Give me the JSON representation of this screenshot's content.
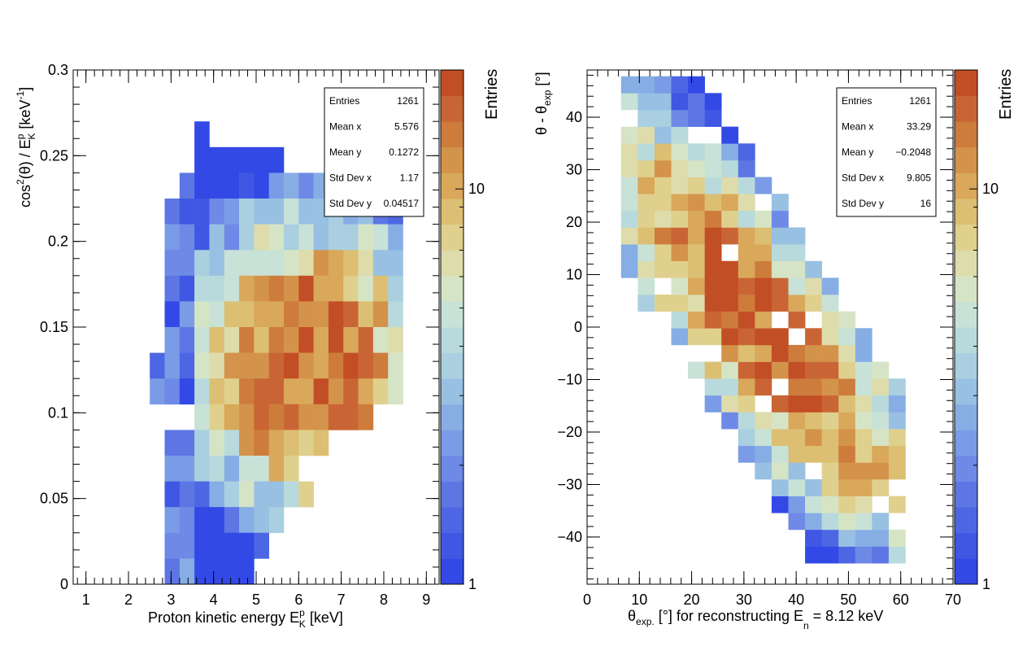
{
  "chart_data": [
    {
      "type": "heatmap",
      "id": "left",
      "xlabel": "Proton kinetic energy E",
      "xlabel_sup": "p",
      "xlabel_sub": "K",
      "xlabel_unit": " [keV]",
      "ylabel": "cos",
      "ylabel_sup1": "2",
      "ylabel_mid": "(θ) / E",
      "ylabel_sup2": "p",
      "ylabel_sub": "K",
      "ylabel_unit": "  [keV",
      "ylabel_unit_sup": "-1",
      "ylabel_close": "]",
      "xlim": [
        0.7,
        9.3
      ],
      "ylim": [
        0,
        0.3
      ],
      "x_ticks": [
        1,
        2,
        3,
        4,
        5,
        6,
        7,
        8,
        9
      ],
      "x_tick_labels": [
        "1",
        "2",
        "3",
        "4",
        "5",
        "6",
        "7",
        "8",
        "9"
      ],
      "y_ticks": [
        0,
        0.05,
        0.1,
        0.15,
        0.2,
        0.25,
        0.3
      ],
      "y_tick_labels": [
        "0",
        "0.05",
        "0.1",
        "0.15",
        "0.2",
        "0.25",
        "0.3"
      ],
      "bins": {
        "x_lo": 2.5,
        "x_width": 0.35,
        "x_count": 17,
        "y_lo": 0.02,
        "y_width": 0.02,
        "y_count": 14
      },
      "palette": {
        "title": "Entries",
        "min": 1,
        "max": 20,
        "scale": "log",
        "tick_values": [
          1,
          10
        ],
        "tick_labels": [
          "1",
          "10"
        ]
      },
      "stats": {
        "rows": [
          {
            "label": "Entries",
            "value": "1261"
          },
          {
            "label": "Mean x",
            "value": "5.576"
          },
          {
            "label": "Mean y",
            "value": "0.1272"
          },
          {
            "label": "Std Dev x",
            "value": "1.17"
          },
          {
            "label": "Std Dev y",
            "value": "0.04517"
          }
        ]
      },
      "cells": [
        [
          3,
          2
        ],
        [
          3,
          3
        ],
        [
          4,
          3
        ],
        [
          5,
          3
        ],
        [
          6,
          3
        ],
        [
          7,
          3
        ],
        [
          8,
          3
        ],
        [
          2,
          4
        ],
        [
          3,
          4
        ],
        [
          4,
          4
        ],
        [
          5,
          4
        ],
        [
          6,
          4
        ],
        [
          7,
          4
        ],
        [
          8,
          4
        ],
        [
          9,
          4
        ],
        [
          10,
          4
        ],
        [
          11,
          4
        ],
        [
          12,
          4
        ],
        [
          13,
          4
        ],
        [
          14,
          4
        ],
        [
          1,
          5
        ],
        [
          2,
          5
        ],
        [
          3,
          5
        ],
        [
          4,
          5
        ],
        [
          5,
          5
        ],
        [
          6,
          5
        ],
        [
          7,
          5
        ],
        [
          8,
          5
        ],
        [
          9,
          5
        ],
        [
          10,
          5
        ],
        [
          11,
          5
        ],
        [
          12,
          5
        ],
        [
          13,
          5
        ],
        [
          14,
          5
        ],
        [
          15,
          5
        ],
        [
          16,
          5
        ],
        [
          1,
          6
        ],
        [
          2,
          6
        ],
        [
          3,
          6
        ],
        [
          4,
          6
        ],
        [
          5,
          6
        ],
        [
          6,
          6
        ],
        [
          7,
          6
        ],
        [
          8,
          6
        ],
        [
          9,
          6
        ],
        [
          10,
          6
        ],
        [
          11,
          6
        ],
        [
          12,
          6
        ],
        [
          13,
          6
        ],
        [
          14,
          6
        ],
        [
          15,
          6
        ],
        [
          16,
          6
        ],
        [
          1,
          7
        ],
        [
          2,
          7
        ],
        [
          3,
          7
        ],
        [
          4,
          7
        ],
        [
          5,
          7
        ],
        [
          6,
          7
        ],
        [
          7,
          7
        ],
        [
          8,
          7
        ],
        [
          9,
          7
        ],
        [
          10,
          7
        ],
        [
          11,
          7
        ],
        [
          12,
          7
        ],
        [
          13,
          7
        ],
        [
          14,
          7
        ],
        [
          15,
          7
        ],
        [
          16,
          7
        ],
        [
          1,
          8
        ],
        [
          2,
          8
        ],
        [
          3,
          8
        ],
        [
          4,
          8
        ],
        [
          5,
          8
        ],
        [
          6,
          8
        ],
        [
          7,
          8
        ],
        [
          8,
          8
        ],
        [
          9,
          8
        ],
        [
          10,
          8
        ],
        [
          11,
          8
        ],
        [
          12,
          8
        ],
        [
          13,
          8
        ],
        [
          14,
          8
        ],
        [
          15,
          8
        ],
        [
          16,
          8
        ],
        [
          1,
          9
        ],
        [
          2,
          9
        ],
        [
          3,
          9
        ],
        [
          4,
          9
        ],
        [
          5,
          9
        ],
        [
          6,
          9
        ],
        [
          7,
          9
        ],
        [
          8,
          9
        ],
        [
          9,
          9
        ],
        [
          10,
          9
        ],
        [
          11,
          9
        ],
        [
          12,
          9
        ],
        [
          13,
          9
        ],
        [
          14,
          9
        ],
        [
          15,
          9
        ],
        [
          16,
          9
        ],
        [
          1,
          10
        ],
        [
          2,
          10
        ],
        [
          3,
          10
        ],
        [
          4,
          10
        ],
        [
          5,
          10
        ],
        [
          6,
          10
        ],
        [
          7,
          10
        ],
        [
          8,
          10
        ],
        [
          9,
          10
        ],
        [
          10,
          10
        ],
        [
          11,
          10
        ],
        [
          12,
          10
        ],
        [
          13,
          10
        ],
        [
          14,
          10
        ],
        [
          15,
          10
        ],
        [
          16,
          10
        ],
        [
          0,
          11
        ],
        [
          1,
          11
        ],
        [
          2,
          11
        ],
        [
          3,
          11
        ],
        [
          4,
          11
        ],
        [
          5,
          11
        ],
        [
          6,
          11
        ],
        [
          7,
          11
        ],
        [
          8,
          11
        ],
        [
          9,
          11
        ],
        [
          10,
          11
        ],
        [
          11,
          11
        ],
        [
          12,
          11
        ],
        [
          13,
          11
        ],
        [
          14,
          11
        ],
        [
          15,
          11
        ],
        [
          16,
          11
        ],
        [
          0,
          12
        ],
        [
          1,
          12
        ],
        [
          2,
          12
        ],
        [
          3,
          12
        ],
        [
          4,
          12
        ],
        [
          5,
          12
        ],
        [
          6,
          12
        ],
        [
          7,
          12
        ],
        [
          8,
          12
        ],
        [
          9,
          12
        ],
        [
          10,
          12
        ],
        [
          11,
          12
        ],
        [
          12,
          12
        ],
        [
          13,
          12
        ],
        [
          14,
          12
        ],
        [
          15,
          12
        ],
        [
          16,
          12
        ],
        [
          3,
          13
        ],
        [
          4,
          13
        ],
        [
          5,
          13
        ],
        [
          6,
          13
        ],
        [
          7,
          13
        ],
        [
          8,
          13
        ],
        [
          9,
          13
        ],
        [
          10,
          13
        ],
        [
          11,
          13
        ],
        [
          12,
          13
        ],
        [
          13,
          13
        ],
        [
          14,
          13
        ],
        [
          1,
          14
        ],
        [
          2,
          14
        ],
        [
          3,
          14
        ],
        [
          4,
          14
        ],
        [
          5,
          14
        ],
        [
          6,
          14
        ],
        [
          7,
          14
        ],
        [
          8,
          14
        ],
        [
          9,
          14
        ],
        [
          10,
          14
        ],
        [
          11,
          14
        ],
        [
          1,
          15
        ],
        [
          2,
          15
        ],
        [
          3,
          15
        ],
        [
          4,
          15
        ],
        [
          5,
          15
        ],
        [
          6,
          15
        ],
        [
          7,
          15
        ],
        [
          8,
          15
        ],
        [
          9,
          15
        ],
        [
          1,
          16
        ],
        [
          2,
          16
        ],
        [
          3,
          16
        ],
        [
          4,
          16
        ],
        [
          5,
          16
        ],
        [
          6,
          16
        ],
        [
          7,
          16
        ],
        [
          8,
          16
        ],
        [
          9,
          16
        ],
        [
          10,
          16
        ],
        [
          1,
          17
        ],
        [
          2,
          17
        ],
        [
          3,
          17
        ],
        [
          4,
          17
        ],
        [
          5,
          17
        ],
        [
          6,
          17
        ],
        [
          7,
          17
        ],
        [
          8,
          17
        ],
        [
          1,
          18
        ],
        [
          2,
          18
        ],
        [
          3,
          18
        ],
        [
          4,
          18
        ],
        [
          5,
          18
        ],
        [
          6,
          18
        ],
        [
          7,
          18
        ],
        [
          1,
          19
        ],
        [
          2,
          19
        ],
        [
          3,
          19
        ],
        [
          4,
          19
        ],
        [
          5,
          19
        ],
        [
          6,
          19
        ]
      ]
    },
    {
      "type": "heatmap",
      "id": "right",
      "xlabel": "θ",
      "xlabel_sub": "exp.",
      "xlabel_mid": " [°] for reconstructing E",
      "xlabel_sub2": "n",
      "xlabel_tail": " = 8.12 keV",
      "ylabel": "θ - θ",
      "ylabel_sub": "exp",
      "ylabel_unit": " [°]",
      "xlim": [
        0,
        70
      ],
      "ylim": [
        -49,
        49
      ],
      "x_ticks": [
        0,
        10,
        20,
        30,
        40,
        50,
        60,
        70
      ],
      "x_tick_labels": [
        "0",
        "10",
        "20",
        "30",
        "40",
        "50",
        "60",
        "70"
      ],
      "y_ticks": [
        -40,
        -30,
        -20,
        -10,
        0,
        10,
        20,
        30,
        40
      ],
      "y_tick_labels": [
        "−40",
        "−30",
        "−20",
        "−10",
        "0",
        "10",
        "20",
        "30",
        "40"
      ],
      "bins": {
        "x_lo": 6.5,
        "x_width": 3.2,
        "x_count": 17,
        "y_lo": -45,
        "y_width": 3.2,
        "y_count": 29
      },
      "palette": {
        "title": "Entries",
        "min": 1,
        "max": 20,
        "scale": "log",
        "tick_values": [
          1,
          10
        ],
        "tick_labels": [
          "1",
          "10"
        ]
      },
      "stats": {
        "rows": [
          {
            "label": "Entries",
            "value": "1261"
          },
          {
            "label": "Mean x",
            "value": "33.29"
          },
          {
            "label": "Mean y",
            "value": "−0.2048"
          },
          {
            "label": "Std Dev x",
            "value": "9.805"
          },
          {
            "label": "Std Dev y",
            "value": "16"
          }
        ]
      }
    }
  ]
}
